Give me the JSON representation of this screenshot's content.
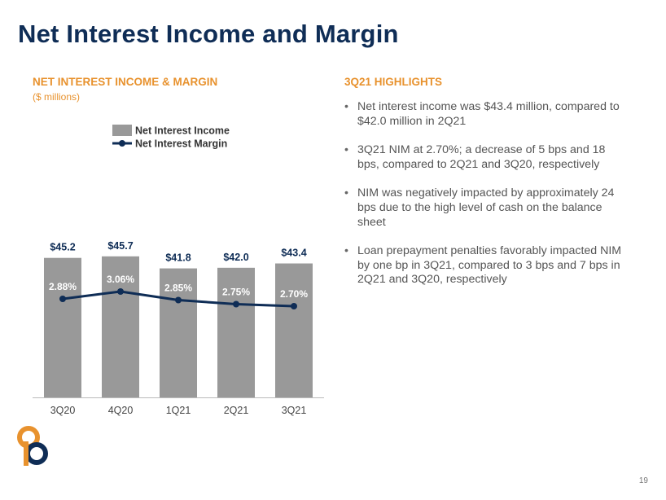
{
  "page": {
    "title": "Net Interest Income and Margin",
    "page_number": "19"
  },
  "chart_section": {
    "heading": "NET INTEREST INCOME & MARGIN",
    "subheading": "($ millions)"
  },
  "highlights": {
    "heading": "3Q21 HIGHLIGHTS",
    "bullets": [
      "Net interest income was $43.4 million, compared to $42.0 million in 2Q21",
      "3Q21 NIM at 2.70%; a decrease of 5 bps and 18 bps, compared to 2Q21 and 3Q20, respectively",
      "NIM was negatively impacted by approximately 24 bps due to the high level of cash on the balance sheet",
      "Loan prepayment penalties favorably impacted NIM by one bp in 3Q21, compared to 3 bps and 7 bps in 2Q21 and 3Q20, respectively"
    ]
  },
  "colors": {
    "title": "#0f2d56",
    "accent": "#e8922e",
    "bar": "#999999",
    "line": "#0f2d56"
  },
  "chart_data": {
    "type": "bar",
    "categories": [
      "3Q20",
      "4Q20",
      "1Q21",
      "2Q21",
      "3Q21"
    ],
    "series": [
      {
        "name": "Net Interest Income",
        "type": "bar",
        "values": [
          45.2,
          45.7,
          41.8,
          42.0,
          43.4
        ],
        "labels": [
          "$45.2",
          "$45.7",
          "$41.8",
          "$42.0",
          "$43.4"
        ]
      },
      {
        "name": "Net Interest Margin",
        "type": "line",
        "values": [
          2.88,
          3.06,
          2.85,
          2.75,
          2.7
        ],
        "labels": [
          "2.88%",
          "3.06%",
          "2.85%",
          "2.75%",
          "2.70%"
        ]
      }
    ],
    "ylim_bar": [
      0,
      50
    ],
    "ylim_line": [
      0,
      6.9
    ],
    "legend": "top-center",
    "grid": false
  }
}
